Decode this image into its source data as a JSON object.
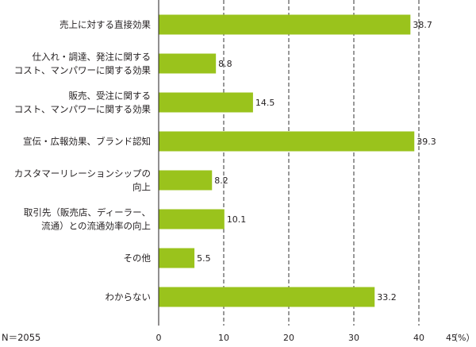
{
  "chart_data": {
    "type": "bar",
    "orientation": "horizontal",
    "categories": [
      [
        "売上に対する直接効果"
      ],
      [
        "仕入れ・調達、発注に関する",
        "コスト、マンパワーに関する効果"
      ],
      [
        "販売、受注に関する",
        "コスト、マンパワーに関する効果"
      ],
      [
        "宣伝・広報効果、ブランド認知"
      ],
      [
        "カスタマーリレーションシップの",
        "向上"
      ],
      [
        "取引先（販売店、ディーラー、",
        "流通）との流通効率の向上"
      ],
      [
        "その他"
      ],
      [
        "わからない"
      ]
    ],
    "values": [
      38.7,
      8.8,
      14.5,
      39.3,
      8.2,
      10.1,
      5.5,
      33.2
    ],
    "value_labels": [
      "38.7",
      "8.8",
      "14.5",
      "39.3",
      "8.2",
      "10.1",
      "5.5",
      "33.2"
    ],
    "xlim": [
      0,
      45
    ],
    "ticks": [
      0,
      10,
      20,
      30,
      40,
      45
    ],
    "tick_labels": [
      "0",
      "10",
      "20",
      "30",
      "40",
      "45"
    ],
    "unit_label": "（%）",
    "gridlines": [
      10,
      20,
      30,
      40
    ],
    "bar_color": "#9ac31c",
    "grid_color": "#333333",
    "footnote": "N＝2055"
  }
}
